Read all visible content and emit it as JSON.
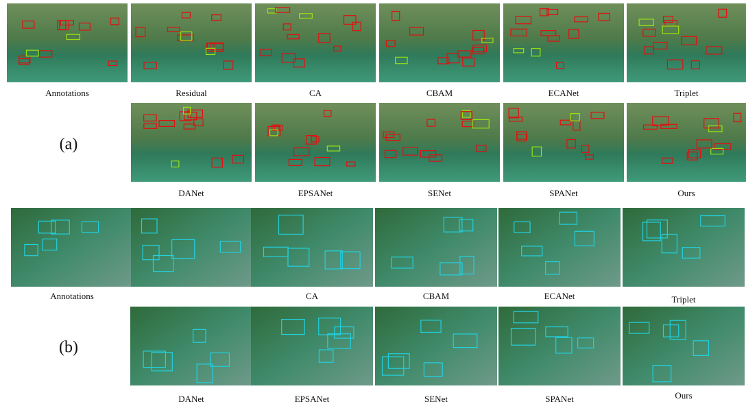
{
  "panels": [
    {
      "label": "(a)",
      "rows": [
        {
          "captions": [
            "Annotations",
            "Residual",
            "CA",
            "CBAM",
            "ECANet",
            "Triplet"
          ]
        },
        {
          "captions": [
            "DANet",
            "EPSANet",
            "SENet",
            "SPANet",
            "Ours"
          ]
        }
      ]
    },
    {
      "label": "(b)",
      "rows": [
        {
          "captions": [
            "Annotations",
            null,
            "CA",
            "CBAM",
            "ECANet",
            "Triplet"
          ]
        },
        {
          "captions": [
            "DANet",
            "EPSANet",
            "SENet",
            "SPANet",
            "Ours"
          ]
        }
      ]
    }
  ]
}
